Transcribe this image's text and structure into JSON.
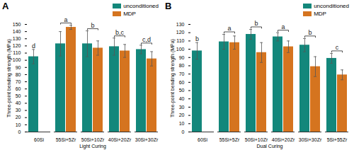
{
  "chart_data": [
    {
      "type": "bar",
      "title": "A",
      "x_label": "Light Curing",
      "y_label": "Three-point bending strength (MPa)",
      "categories": [
        "60Si",
        "55Si+5Zr",
        "50Si+10Zr",
        "40Si+20Zr",
        "30Si+30Zr"
      ],
      "series": [
        {
          "name": "unconditioned",
          "color": "#13877b",
          "values": [
            105,
            123,
            123,
            119,
            115
          ],
          "errors": [
            10,
            17,
            18,
            12,
            6
          ]
        },
        {
          "name": "MDP",
          "color": "#d5741f",
          "values": [
            null,
            146,
            117,
            113,
            102
          ],
          "errors": [
            null,
            3,
            10,
            9,
            10
          ]
        }
      ],
      "annotations": [
        {
          "category": "60Si",
          "text": "d"
        },
        {
          "category": "55Si+5Zr",
          "text": "a"
        },
        {
          "category": "50Si+10Zr",
          "text": "b"
        },
        {
          "category": "40Si+20Zr",
          "text": "b,c"
        },
        {
          "category": "30Si+30Zr",
          "text": "c,d"
        }
      ],
      "ylim": [
        0,
        150
      ],
      "yticks": [
        0,
        10,
        20,
        30,
        40,
        50,
        60,
        70,
        80,
        90,
        100,
        110,
        120,
        130,
        140,
        150
      ],
      "legend": "top-right"
    },
    {
      "type": "bar",
      "title": "B",
      "x_label": "Dual Curing",
      "y_label": "Three-point bending strength (MPa)",
      "categories": [
        "60Si",
        "55Si+5Zr",
        "50Si+10Zr",
        "40Si+20Zr",
        "30Si+30Zr",
        "5Si+55Zr"
      ],
      "series": [
        {
          "name": "unconditioned",
          "color": "#13877b",
          "values": [
            98,
            109,
            118,
            115,
            105,
            89
          ],
          "errors": [
            10,
            9,
            6,
            5,
            8,
            6
          ]
        },
        {
          "name": "MDP",
          "color": "#d5741f",
          "values": [
            null,
            108,
            96,
            103,
            79,
            69
          ],
          "errors": [
            null,
            8,
            12,
            7,
            12,
            6
          ]
        }
      ],
      "annotations": [
        {
          "category": "60Si",
          "text": "b"
        },
        {
          "category": "55Si+5Zr",
          "text": "a"
        },
        {
          "category": "50Si+10Zr",
          "text": "b"
        },
        {
          "category": "40Si+20Zr",
          "text": "a"
        },
        {
          "category": "30Si+30Zr",
          "text": "b"
        },
        {
          "category": "5Si+55Zr",
          "text": "c"
        }
      ],
      "ylim": [
        0,
        130
      ],
      "yticks": [
        0,
        10,
        20,
        30,
        40,
        50,
        60,
        70,
        80,
        90,
        100,
        110,
        120,
        130
      ],
      "legend": "top-right"
    }
  ]
}
